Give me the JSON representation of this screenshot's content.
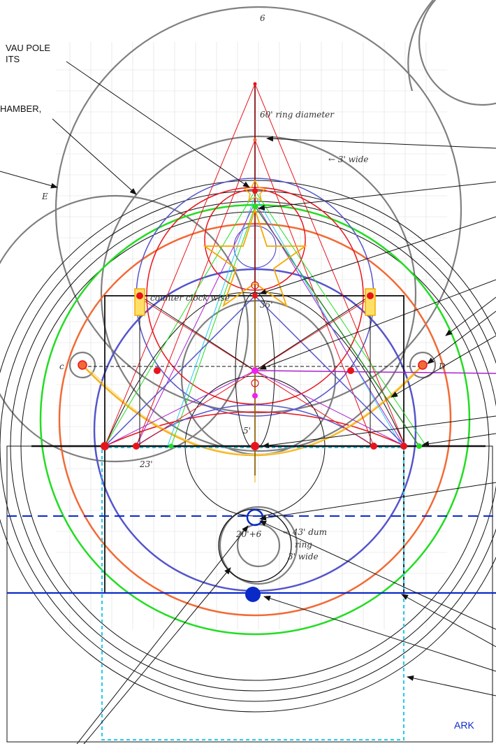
{
  "labels": {
    "top_left_line1": "VAU POLE",
    "top_left_line2": "ITS",
    "chamber": "HAMBER,",
    "ark": "ARK"
  },
  "handwritten": {
    "ring_diameter": "60' ring diameter",
    "three_wide": "← 3' wide",
    "dim_43": "← 43' dum",
    "ring": "ring",
    "three_wide_b": "3' wide",
    "counter_clockwise": "counter clock wise",
    "thirty_five": "35'",
    "five": "5'",
    "twenty_three": "23'",
    "letter_c": "c",
    "letter_d": "D",
    "letter_e": "E",
    "twenty_six": "20'+6",
    "top_letter": "6"
  },
  "colors": {
    "red": "#e8141c",
    "green": "#22dd22",
    "orange": "#f26a35",
    "blue": "#5555cc",
    "navy": "#0a2ac8",
    "cyan": "#22ccee",
    "purple": "#aa22cc",
    "magenta": "#ee22ee",
    "gold": "#f6a800",
    "pencil": "#555555"
  }
}
